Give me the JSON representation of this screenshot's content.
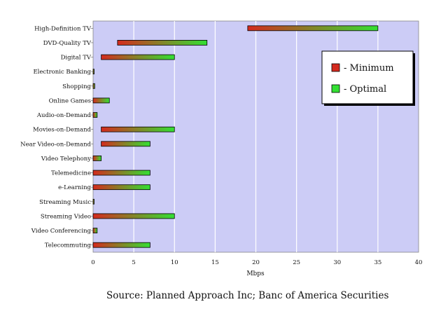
{
  "chart_data": {
    "type": "bar",
    "orientation": "horizontal",
    "stacked_ranges": true,
    "categories": [
      "High-Definition TV",
      "DVD-Quality TV",
      "Digital TV",
      "Electronic Banking",
      "Shopping",
      "Online Games",
      "Audio-on-Demand",
      "Movies-on-Demand",
      "Near Video-on-Demand",
      "Video Telephony",
      "Telemedicine",
      "e-Learning",
      "Streaming Music",
      "Streaming Video",
      "Video Conferencing",
      "Telecommuting"
    ],
    "series": [
      {
        "name": "- Minimum",
        "color": "#d42a1e",
        "values": [
          19,
          3,
          1,
          0,
          0,
          0,
          0,
          1,
          1,
          0,
          0,
          0,
          0,
          0,
          0,
          0
        ]
      },
      {
        "name": "- Optimal",
        "color": "#33e033",
        "values": [
          35,
          14,
          10,
          0.1,
          0.2,
          2,
          0.5,
          10,
          7,
          1,
          7,
          7,
          0.1,
          10,
          0.5,
          7
        ]
      }
    ],
    "xlabel": "Mbps",
    "ylabel": "",
    "xlim": [
      0,
      40
    ],
    "xticks": [
      0,
      5,
      10,
      15,
      20,
      25,
      30,
      35,
      40
    ],
    "grid": true,
    "legend_position": "top-right",
    "plot_background": "#ccccf6",
    "gridline_color": "#ffffff"
  },
  "source": "Source: Planned Approach Inc; Banc of America Securities"
}
